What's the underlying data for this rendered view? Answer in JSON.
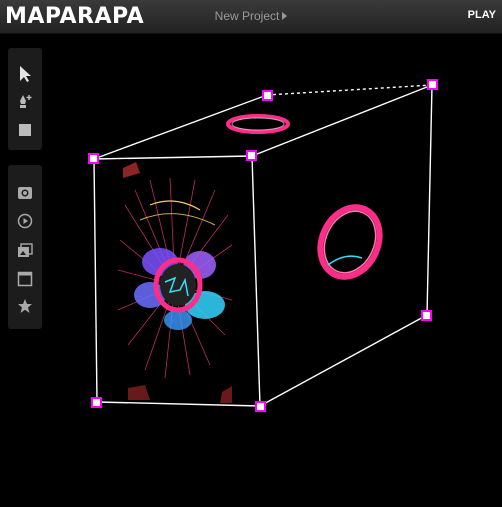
{
  "app": {
    "title": "MAPARAPA"
  },
  "header": {
    "project_label": "New Project",
    "play_label": "PLAY"
  },
  "tools": [
    {
      "name": "select-arrow-icon"
    },
    {
      "name": "pen-add-icon"
    },
    {
      "name": "square-shape-icon"
    }
  ],
  "media_tools": [
    {
      "name": "camera-icon"
    },
    {
      "name": "play-circle-icon"
    },
    {
      "name": "image-stack-icon"
    },
    {
      "name": "window-icon"
    },
    {
      "name": "star-icon"
    }
  ],
  "colors": {
    "handle": "#ff00ff",
    "wire": "#ffffff",
    "accent_pink": "#ff2d8a",
    "accent_cyan": "#33e0ff"
  }
}
